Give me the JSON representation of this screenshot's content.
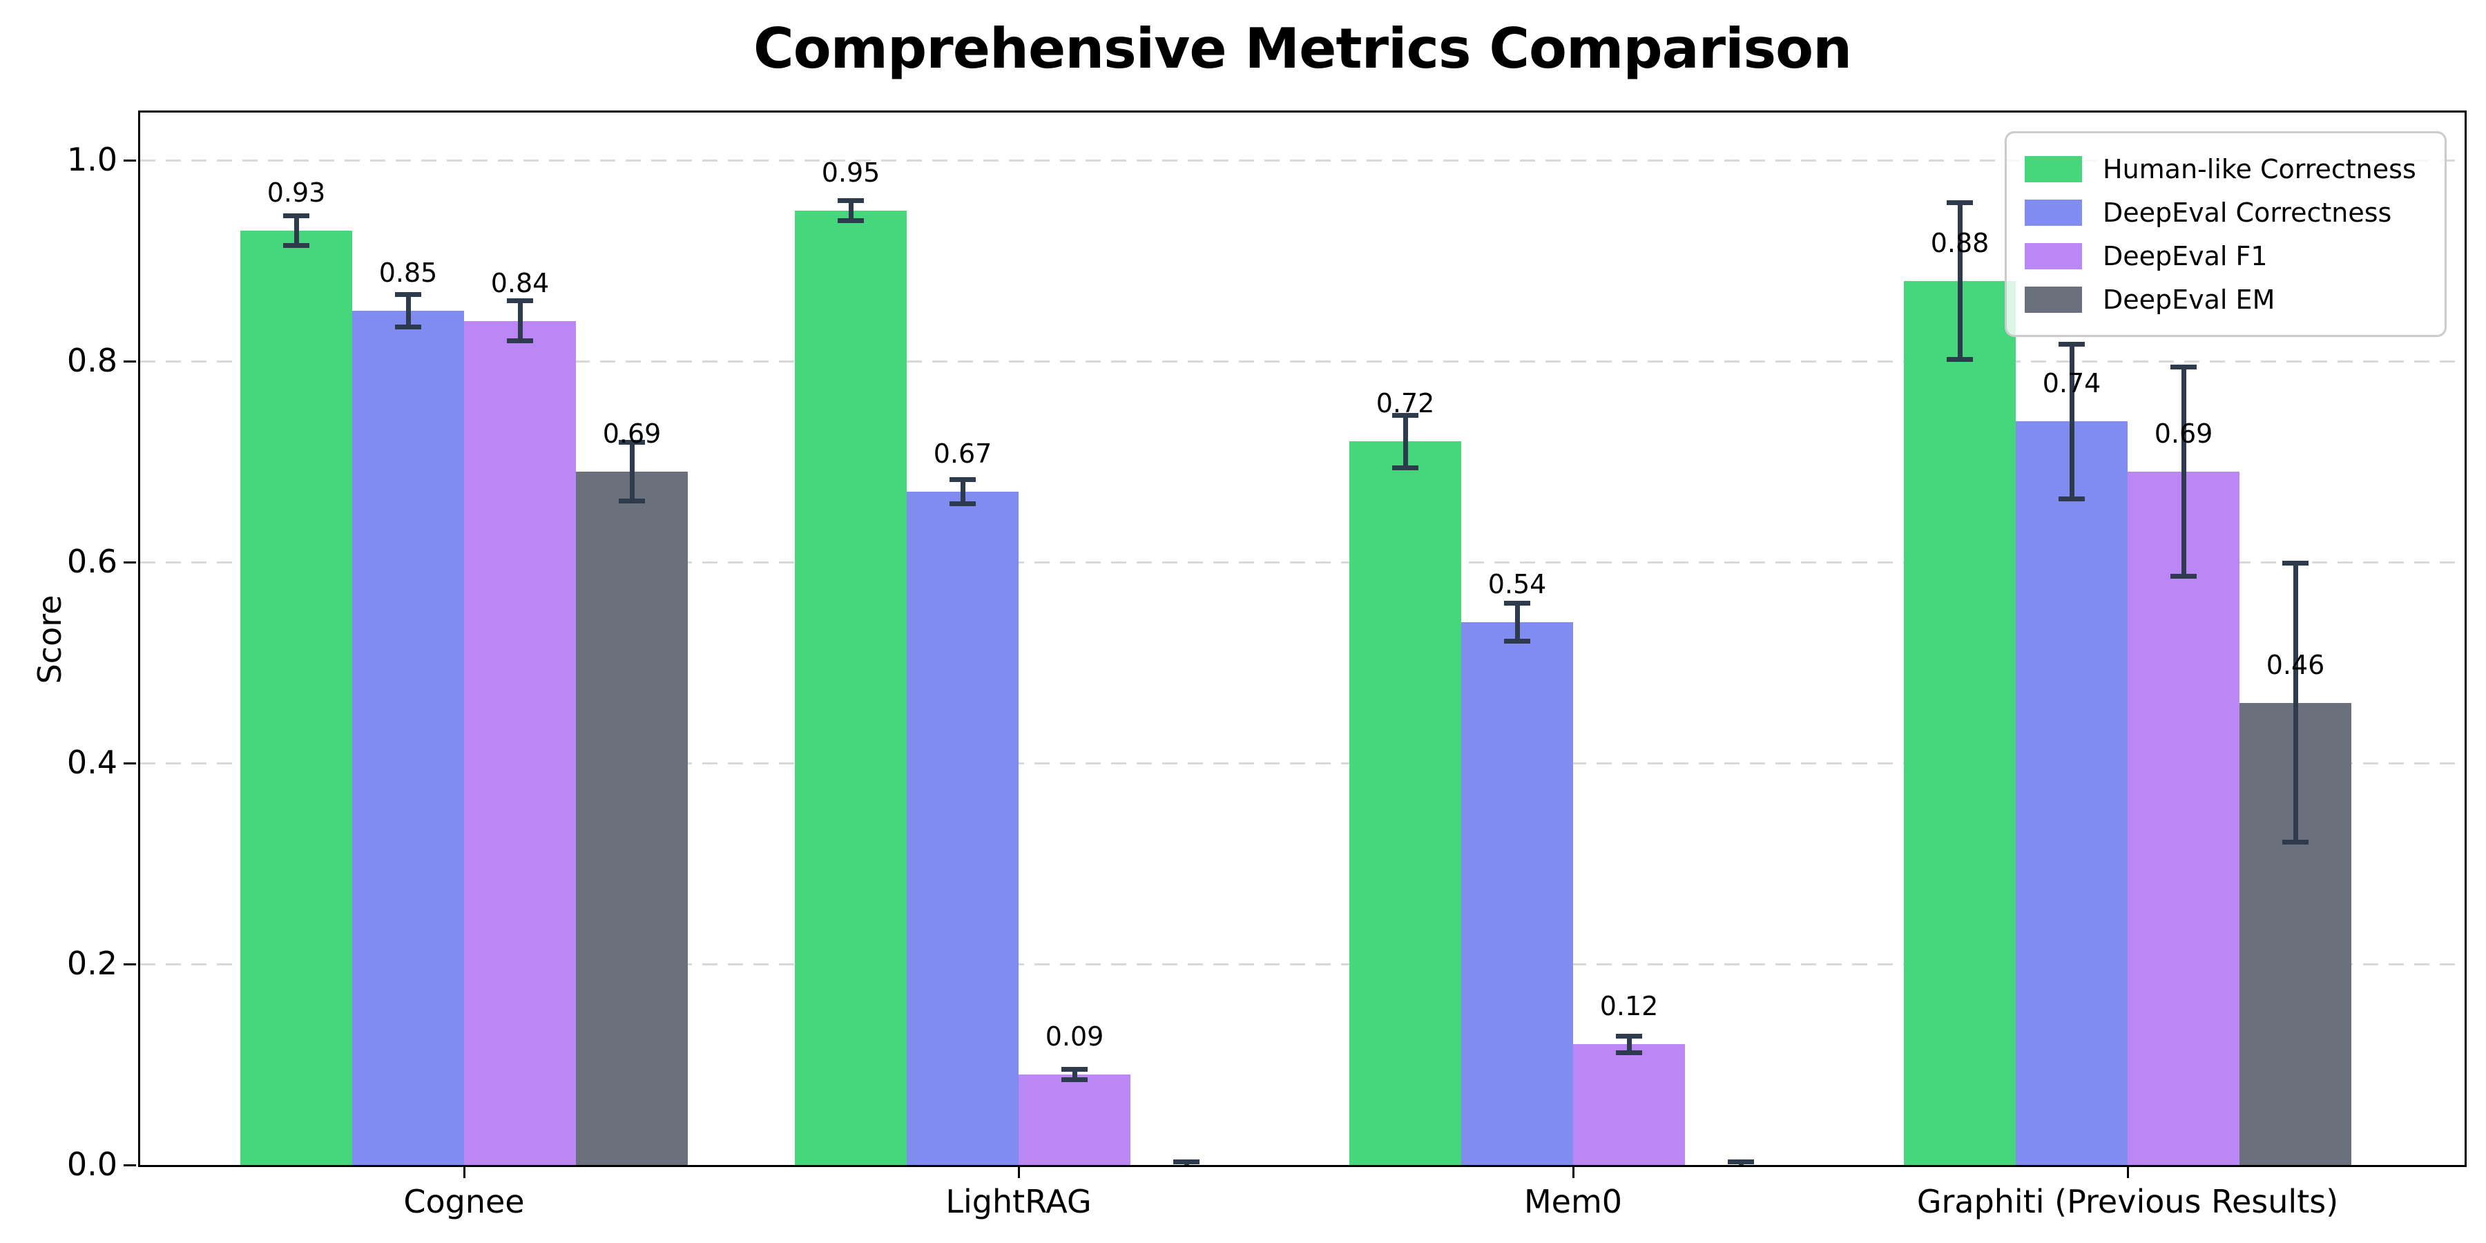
{
  "chart_data": {
    "type": "bar",
    "title": "Comprehensive Metrics Comparison",
    "xlabel": "",
    "ylabel": "Score",
    "categories": [
      "Cognee",
      "LightRAG",
      "Mem0",
      "Graphiti (Previous Results)"
    ],
    "series": [
      {
        "name": "Human-like Correctness",
        "color": "#46d77d",
        "values": [
          0.93,
          0.95,
          0.72,
          0.88
        ],
        "errors": [
          0.015,
          0.01,
          0.026,
          0.078
        ],
        "labels": [
          "0.93",
          "0.95",
          "0.72",
          "0.88"
        ]
      },
      {
        "name": "DeepEval Correctness",
        "color": "#808cf0",
        "values": [
          0.85,
          0.67,
          0.54,
          0.74
        ],
        "errors": [
          0.016,
          0.012,
          0.019,
          0.077
        ],
        "labels": [
          "0.85",
          "0.67",
          "0.54",
          "0.74"
        ]
      },
      {
        "name": "DeepEval F1",
        "color": "#bb87f5",
        "values": [
          0.84,
          0.09,
          0.12,
          0.69
        ],
        "errors": [
          0.02,
          0.005,
          0.008,
          0.104
        ],
        "labels": [
          "0.84",
          "0.09",
          "0.12",
          "0.69"
        ]
      },
      {
        "name": "DeepEval EM",
        "color": "#6a707c",
        "values": [
          0.69,
          0.0,
          0.0,
          0.46
        ],
        "errors": [
          0.029,
          0.003,
          0.003,
          0.139
        ],
        "labels": [
          "0.69",
          null,
          null,
          "0.46"
        ]
      }
    ],
    "yticks": [
      "0.0",
      "0.2",
      "0.4",
      "0.6",
      "0.8",
      "1.0"
    ],
    "ytick_values": [
      0.0,
      0.2,
      0.4,
      0.6,
      0.8,
      1.0
    ],
    "ylim": [
      0,
      1.047
    ],
    "grid": "horizontal-dashed",
    "legend_position": "upper-right",
    "error_bar_color": "#2e3b4c"
  }
}
